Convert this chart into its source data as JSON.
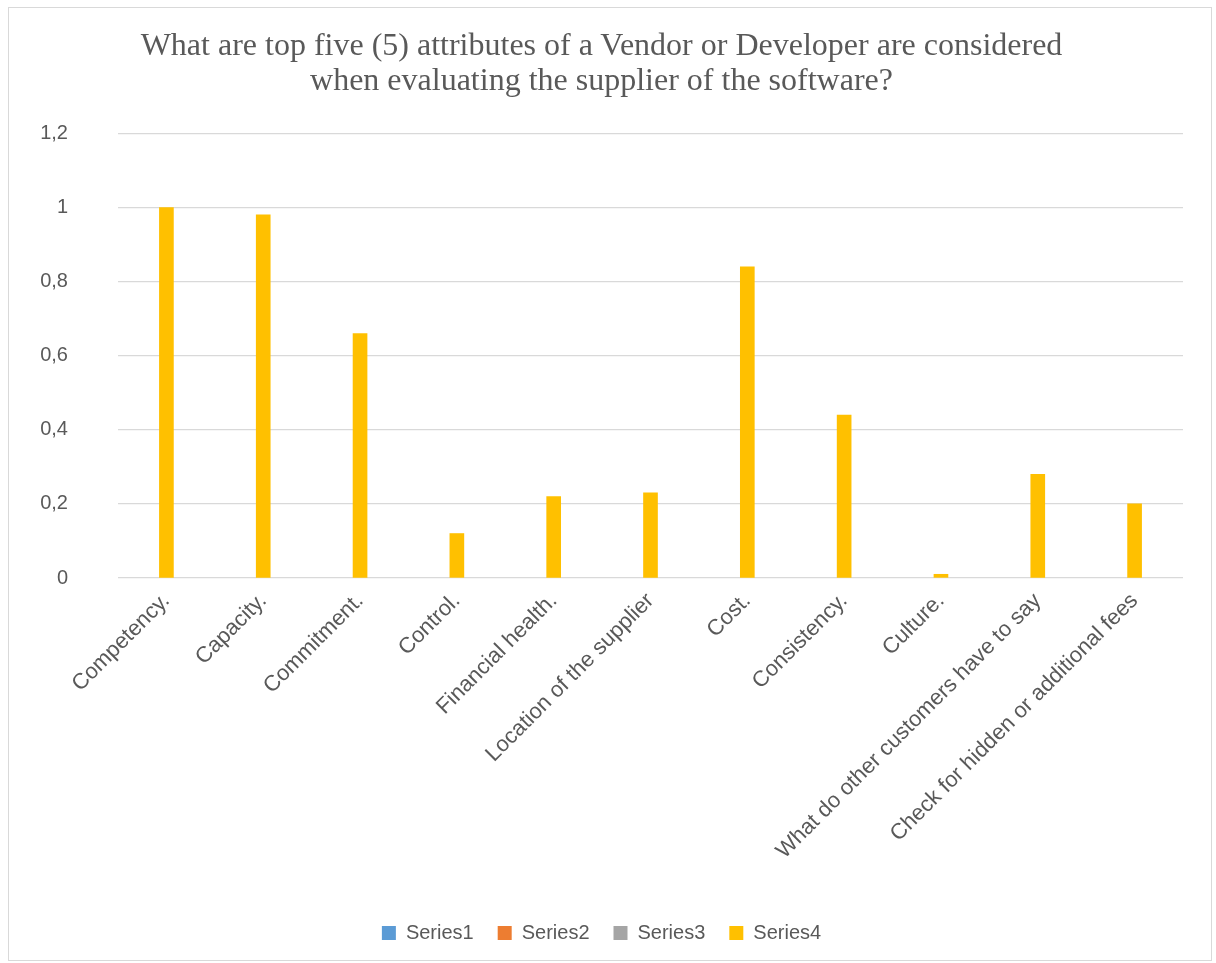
{
  "chart_data": {
    "type": "bar",
    "title": "What are top five (5) attributes of a Vendor or Developer are considered when evaluating the supplier of the software?",
    "categories": [
      "Competency.",
      "Capacity.",
      "Commitment.",
      "Control.",
      "Financial health.",
      "Location of the supplier",
      "Cost.",
      "Consistency.",
      "Culture.",
      "What do other customers have to say",
      "Check for hidden or additional fees"
    ],
    "series": [
      {
        "name": "Series1",
        "color": "#5b9bd5",
        "values": [
          null,
          null,
          null,
          null,
          null,
          null,
          null,
          null,
          null,
          null,
          null
        ]
      },
      {
        "name": "Series2",
        "color": "#ed7d31",
        "values": [
          null,
          null,
          null,
          null,
          null,
          null,
          null,
          null,
          null,
          null,
          null
        ]
      },
      {
        "name": "Series3",
        "color": "#a5a5a5",
        "values": [
          null,
          null,
          null,
          null,
          null,
          null,
          null,
          null,
          null,
          null,
          null
        ]
      },
      {
        "name": "Series4",
        "color": "#ffc000",
        "values": [
          1,
          0.98,
          0.66,
          0.12,
          0.22,
          0.23,
          0.84,
          0.44,
          0.01,
          0.28,
          0.2
        ]
      }
    ],
    "ylim": [
      0,
      1.2
    ],
    "yticks": [
      0,
      {
        "value": 0.2,
        "label": "0,2"
      },
      {
        "value": 0.4,
        "label": "0,4"
      },
      {
        "value": 0.6,
        "label": "0,6"
      },
      {
        "value": 0.8,
        "label": "0,8"
      },
      1,
      {
        "value": 1.2,
        "label": "1,2"
      }
    ],
    "grid": "y",
    "legend": "bottom"
  }
}
